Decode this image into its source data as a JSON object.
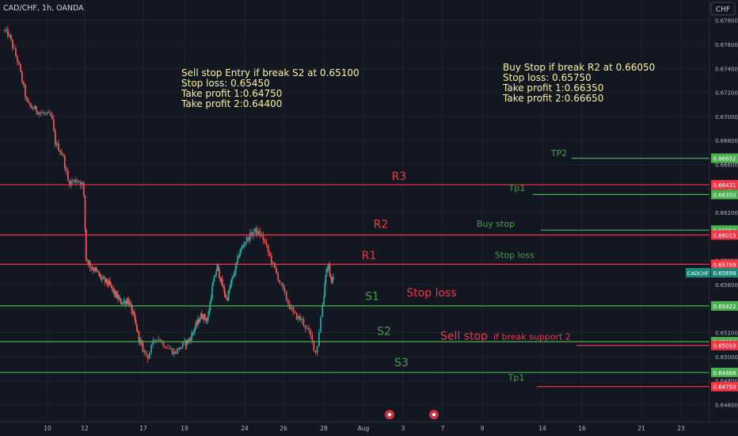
{
  "header": {
    "symbol": "CAD/CHF, 1h, OANDA",
    "currency": "CHF"
  },
  "colors": {
    "background": "#131722",
    "grid": "#1e222d",
    "up": "#26a69a",
    "down": "#ef5350",
    "red_line": "#f23645",
    "green_line": "#4caf50",
    "note_text": "#f7f1a1",
    "label_red": "#f23645",
    "label_green": "#43a047",
    "axis_text": "#b2b5be",
    "current_tag": "#1b8a7a"
  },
  "notes": {
    "sell": [
      "Sell stop Entry if break S2 at 0.65100",
      "Stop loss: 0.65450",
      "Take profit 1:0.64750",
      "Take profit 2:0.64400"
    ],
    "buy": [
      "Buy Stop if break R2 at 0.66050",
      "Stop loss: 0.65750",
      "Take profit 1:0.66350",
      "Take profit 2:0.66650"
    ]
  },
  "chart_data": {
    "type": "candlestick",
    "symbol": "CADCHF",
    "ylim": [
      0.6453,
      0.6795
    ],
    "y_ticks": [
      "0.67800",
      "0.67600",
      "0.67400",
      "0.67200",
      "0.67000",
      "0.66800",
      "0.66600",
      "0.66400",
      "0.66200",
      "0.66000",
      "0.65800",
      "0.65600",
      "0.65400",
      "0.65200",
      "0.65000",
      "0.64800",
      "0.64600"
    ],
    "x_ticks": [
      {
        "label": "10",
        "day": 10
      },
      {
        "label": "12",
        "day": 12
      },
      {
        "label": "17",
        "day": 17
      },
      {
        "label": "19",
        "day": 19
      },
      {
        "label": "24",
        "day": 24
      },
      {
        "label": "26",
        "day": 26
      },
      {
        "label": "28",
        "day": 28
      },
      {
        "label": "Aug",
        "day": 32
      },
      {
        "label": "3",
        "day": 34
      },
      {
        "label": "7",
        "day": 36
      },
      {
        "label": "9",
        "day": 38
      },
      {
        "label": "14",
        "day": 40
      },
      {
        "label": "16",
        "day": 42
      },
      {
        "label": "21",
        "day": 44
      },
      {
        "label": "23",
        "day": 46
      }
    ],
    "price_path": [
      [
        7.7,
        0.6772
      ],
      [
        8.0,
        0.6768
      ],
      [
        8.5,
        0.6745
      ],
      [
        9.0,
        0.671
      ],
      [
        9.5,
        0.6705
      ],
      [
        9.9,
        0.6702
      ],
      [
        10.3,
        0.67
      ],
      [
        10.5,
        0.6678
      ],
      [
        10.9,
        0.6668
      ],
      [
        11.2,
        0.6645
      ],
      [
        11.7,
        0.6647
      ],
      [
        12.0,
        0.6643
      ],
      [
        12.2,
        0.6582
      ],
      [
        12.6,
        0.6575
      ],
      [
        13.0,
        0.6572
      ],
      [
        13.5,
        0.6565
      ],
      [
        14.2,
        0.656
      ],
      [
        14.6,
        0.6553
      ],
      [
        15.2,
        0.6545
      ],
      [
        15.8,
        0.6547
      ],
      [
        16.3,
        0.6532
      ],
      [
        16.8,
        0.6512
      ],
      [
        17.3,
        0.65
      ],
      [
        17.7,
        0.6517
      ],
      [
        18.1,
        0.651
      ],
      [
        18.6,
        0.6503
      ],
      [
        19.0,
        0.651
      ],
      [
        19.5,
        0.6514
      ],
      [
        20.0,
        0.6525
      ],
      [
        20.5,
        0.6535
      ],
      [
        21.0,
        0.653
      ],
      [
        21.4,
        0.6558
      ],
      [
        21.8,
        0.6575
      ],
      [
        22.2,
        0.656
      ],
      [
        22.6,
        0.6547
      ],
      [
        23.0,
        0.6563
      ],
      [
        23.3,
        0.6572
      ],
      [
        23.6,
        0.6585
      ],
      [
        24.1,
        0.6596
      ],
      [
        24.6,
        0.6605
      ],
      [
        25.0,
        0.66
      ],
      [
        25.5,
        0.6578
      ],
      [
        25.9,
        0.6562
      ],
      [
        26.3,
        0.6545
      ],
      [
        26.6,
        0.6535
      ],
      [
        27.0,
        0.653
      ],
      [
        27.4,
        0.6518
      ],
      [
        27.7,
        0.6502
      ],
      [
        28.0,
        0.6542
      ],
      [
        28.3,
        0.6572
      ],
      [
        28.6,
        0.6575
      ],
      [
        28.8,
        0.6562
      ],
      [
        29.0,
        0.6566
      ]
    ],
    "horizontal_lines": [
      {
        "name": "TP2",
        "price": 0.66652,
        "price_label": "0.66652",
        "color": "green"
      },
      {
        "name": "R3",
        "price": 0.66431,
        "price_label": "0.66431",
        "color": "red"
      },
      {
        "name": "Tp1",
        "price": 0.6635,
        "price_label": "0.66350",
        "color": "green"
      },
      {
        "name": "Buy stop",
        "price": 0.66053,
        "price_label": "0.66053",
        "color": "green"
      },
      {
        "name": "R2",
        "price": 0.66013,
        "price_label": "0.66013",
        "color": "red"
      },
      {
        "name": "R1",
        "price": 0.65769,
        "price_label": "0.65769",
        "color": "red"
      },
      {
        "name": "S1",
        "price": 0.65422,
        "price_label": "0.65422",
        "color": "green"
      },
      {
        "name": "S2",
        "price": 0.65124,
        "price_label": "0.65124",
        "color": "green"
      },
      {
        "name": "Sell stop",
        "price": 0.65093,
        "price_label": "0.65093",
        "color": "red"
      },
      {
        "name": "S3",
        "price": 0.64868,
        "price_label": "0.64868",
        "color": "green"
      },
      {
        "name": "Tp1 (sell)",
        "price": 0.6475,
        "price_label": "0.64750",
        "color": "red"
      }
    ],
    "current_price": {
      "symbol": "CADCHF",
      "price": 0.65698,
      "price_label": "0.65698"
    },
    "annotations": [
      {
        "text": "R3",
        "day": 29.8,
        "price": 0.6647,
        "color": "red"
      },
      {
        "text": "R2",
        "day": 29.4,
        "price": 0.6607,
        "color": "red"
      },
      {
        "text": "R1",
        "day": 29.0,
        "price": 0.6581,
        "color": "red"
      },
      {
        "text": "S1",
        "day": 29.0,
        "price": 0.6547,
        "color": "green"
      },
      {
        "text": "S2",
        "day": 30.2,
        "price": 0.6518,
        "color": "green"
      },
      {
        "text": "S3",
        "day": 31.0,
        "price": 0.6492,
        "color": "green"
      },
      {
        "text": "TP2",
        "day": 39.0,
        "price": 0.6667,
        "color": "green"
      },
      {
        "text": "Tp1",
        "day": 38.0,
        "price": 0.6638,
        "color": "green"
      },
      {
        "text": "Buy stop",
        "day": 37.3,
        "price": 0.6608,
        "color": "green"
      },
      {
        "text": "Stop loss",
        "day": 38.0,
        "price": 0.6582,
        "color": "green"
      },
      {
        "text": "Stop loss",
        "day": 32.8,
        "price": 0.655,
        "color": "red"
      },
      {
        "text": "Sell stop",
        "day": 34.4,
        "price": 0.6514,
        "color": "red"
      },
      {
        "text": "if break support 2",
        "day": 37.6,
        "price": 0.6514,
        "color": "red"
      },
      {
        "text": "Tp1",
        "day": 38.0,
        "price": 0.648,
        "color": "green"
      }
    ]
  }
}
